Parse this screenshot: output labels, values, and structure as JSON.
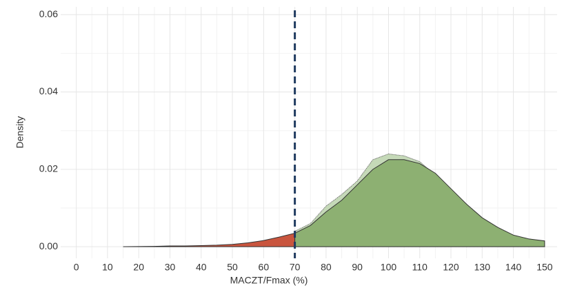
{
  "chart_data": {
    "type": "density",
    "x_label": "MACZT/Fmax (%)",
    "y_label": "Density",
    "xlim": [
      -5,
      154
    ],
    "ylim": [
      -0.003,
      0.062
    ],
    "xticks": [
      0,
      10,
      20,
      30,
      40,
      50,
      60,
      70,
      80,
      90,
      100,
      110,
      120,
      130,
      140,
      150
    ],
    "yticks": [
      {
        "value": 0,
        "label": "0.00"
      },
      {
        "value": 0.02,
        "label": "0.02"
      },
      {
        "value": 0.04,
        "label": "0.04"
      },
      {
        "value": 0.06,
        "label": "0.06"
      }
    ],
    "grid": true,
    "threshold": 70,
    "threshold_color": "#1f3a5f",
    "below_color": "#c9553e",
    "series": [
      {
        "color": "#c5d9b8",
        "x": [
          70,
          75,
          80,
          85,
          90,
          95,
          100,
          105,
          110,
          115,
          120,
          125,
          130,
          135,
          140,
          145,
          150
        ],
        "values": [
          0.004,
          0.006,
          0.0105,
          0.0135,
          0.017,
          0.0225,
          0.024,
          0.0235,
          0.022,
          0.0185,
          0.0145,
          0.0105,
          0.0072,
          0.0048,
          0.003,
          0.002,
          0.0013
        ]
      },
      {
        "color": "#8aae6e",
        "x": [
          15,
          20,
          25,
          30,
          35,
          40,
          45,
          50,
          55,
          60,
          65,
          70,
          75,
          80,
          85,
          90,
          95,
          100,
          105,
          110,
          115,
          120,
          125,
          130,
          135,
          140,
          145,
          150
        ],
        "values": [
          0,
          5e-05,
          0.0001,
          0.0002,
          0.0002,
          0.0003,
          0.0004,
          0.0006,
          0.001,
          0.0016,
          0.0025,
          0.0035,
          0.0055,
          0.009,
          0.012,
          0.016,
          0.02,
          0.0225,
          0.0225,
          0.0215,
          0.019,
          0.015,
          0.011,
          0.0075,
          0.005,
          0.003,
          0.002,
          0.0015
        ]
      }
    ]
  }
}
